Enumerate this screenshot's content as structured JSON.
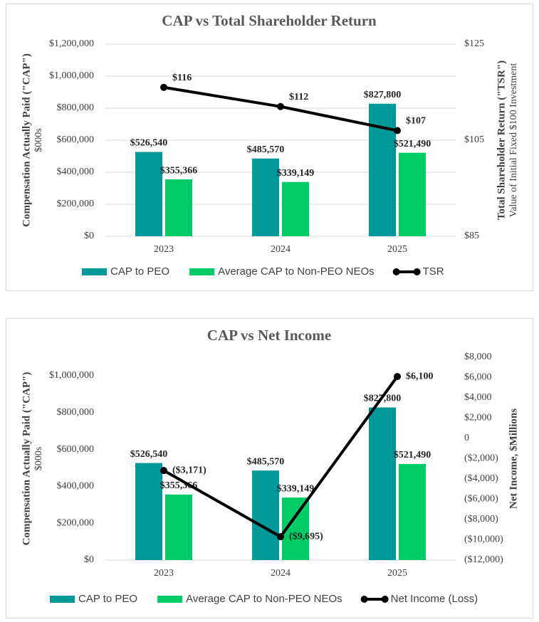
{
  "chart_data": [
    {
      "type": "bar",
      "title": "CAP vs Total Shareholder Return",
      "ylabel": "Compensation Actually Paid (\"CAP\")",
      "ysublabel": "$000s",
      "y2label": "Total Shareholder Return (\"TSR\")",
      "y2sublabel": "Value of Initial Fixed $100 Investment",
      "categories": [
        "2023",
        "2024",
        "2025"
      ],
      "ylim": [
        0,
        1200000
      ],
      "yticks": [
        {
          "value": 0,
          "label": "$0"
        },
        {
          "value": 200000,
          "label": "$200,000"
        },
        {
          "value": 400000,
          "label": "$400,000"
        },
        {
          "value": 600000,
          "label": "$600,000"
        },
        {
          "value": 800000,
          "label": "$800,000"
        },
        {
          "value": 1000000,
          "label": "$1,000,000"
        },
        {
          "value": 1200000,
          "label": "$1,200,000"
        }
      ],
      "y2lim": [
        85,
        125
      ],
      "y2ticks": [
        {
          "value": 85,
          "label": "$85"
        },
        {
          "value": 105,
          "label": "$105"
        },
        {
          "value": 125,
          "label": "$125"
        }
      ],
      "grid": true,
      "series": [
        {
          "name": "CAP to PEO",
          "color": "#009999",
          "values": [
            526540,
            485570,
            827800
          ],
          "value_labels": [
            "$526,540",
            "$485,570",
            "$827,800"
          ]
        },
        {
          "name": "Average CAP to Non-PEO NEOs",
          "color": "#00cc66",
          "values": [
            355366,
            339149,
            521490
          ],
          "value_labels": [
            "$355,366",
            "$339,149",
            "$521,490"
          ]
        },
        {
          "name": "TSR",
          "type": "line",
          "axis": "y2",
          "color": "#000000",
          "values": [
            116,
            112,
            107
          ],
          "value_labels": [
            "$116",
            "$112",
            "$107"
          ]
        }
      ]
    },
    {
      "type": "bar",
      "title": "CAP vs Net Income",
      "ylabel": "Compensation Actually Paid (\"CAP\")",
      "ysublabel": "$000s",
      "y2label": "Net Income, $Millions",
      "categories": [
        "2023",
        "2024",
        "2025"
      ],
      "ylim": [
        0,
        1100000
      ],
      "yticks": [
        {
          "value": 0,
          "label": "$0"
        },
        {
          "value": 200000,
          "label": "$200,000"
        },
        {
          "value": 400000,
          "label": "$400,000"
        },
        {
          "value": 600000,
          "label": "$600,000"
        },
        {
          "value": 800000,
          "label": "$800,000"
        },
        {
          "value": 1000000,
          "label": "$1,000,000"
        }
      ],
      "y2lim": [
        -12000,
        8000
      ],
      "y2ticks": [
        {
          "value": -12000,
          "label": "($12,000)"
        },
        {
          "value": -10000,
          "label": "($10,000)"
        },
        {
          "value": -8000,
          "label": "($8,000)"
        },
        {
          "value": -6000,
          "label": "($6,000)"
        },
        {
          "value": -4000,
          "label": "($4,000)"
        },
        {
          "value": -2000,
          "label": "($2,000)"
        },
        0,
        {
          "value": 2000,
          "label": "$2,000"
        },
        {
          "value": 4000,
          "label": "$4,000"
        },
        {
          "value": 6000,
          "label": "$6,000"
        },
        {
          "value": 8000,
          "label": "$8,000"
        }
      ],
      "grid": false,
      "series": [
        {
          "name": "CAP to PEO",
          "color": "#009999",
          "values": [
            526540,
            485570,
            827800
          ],
          "value_labels": [
            "$526,540",
            "$485,570",
            "$827,800"
          ]
        },
        {
          "name": "Average CAP to Non-PEO NEOs",
          "color": "#00cc66",
          "values": [
            355366,
            339149,
            521490
          ],
          "value_labels": [
            "$355,366",
            "$339,149",
            "$521,490"
          ]
        },
        {
          "name": "Net Income (Loss)",
          "type": "line",
          "axis": "y2",
          "color": "#000000",
          "values": [
            -3171,
            -9695,
            6100
          ],
          "value_labels": [
            "($3,171)",
            "($9,695)",
            "$6,100"
          ]
        }
      ]
    }
  ]
}
